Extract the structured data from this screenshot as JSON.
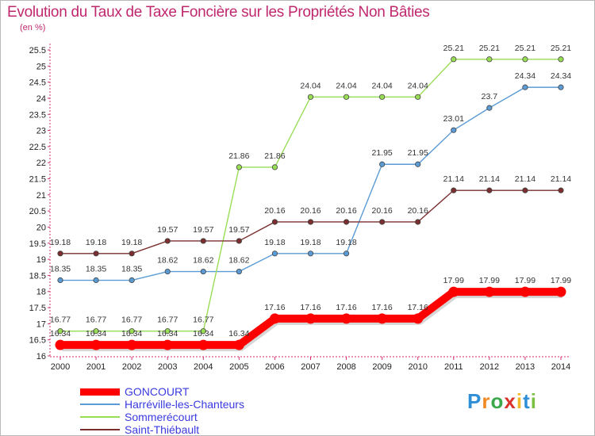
{
  "title": "Evolution du Taux de Taxe Foncière sur les Propriétés Non Bâties",
  "unit_label": "(en %)",
  "brand": {
    "text": "Proxiti",
    "letter_colors": [
      "#2f8fd6",
      "#f08a24",
      "#3aa84b",
      "#d9342b",
      "#f0b92a",
      "#2f8fd6",
      "#7bc043"
    ]
  },
  "chart_data": {
    "type": "line",
    "x": [
      "2000",
      "2001",
      "2002",
      "2003",
      "2004",
      "2005",
      "2006",
      "2007",
      "2008",
      "2009",
      "2010",
      "2011",
      "2012",
      "2013",
      "2014"
    ],
    "ylim": [
      16,
      25.5
    ],
    "yticks": [
      "16",
      "16.5",
      "17",
      "17.5",
      "18",
      "18.5",
      "19",
      "19.5",
      "20",
      "20.5",
      "21",
      "21.5",
      "22",
      "22.5",
      "23",
      "23.5",
      "24",
      "24.5",
      "25",
      "25.5"
    ],
    "grid": false,
    "legend_position": "bottom-left",
    "series": [
      {
        "name": "GONCOURT",
        "color": "#ff0000",
        "emphasis": true,
        "values": [
          16.34,
          16.34,
          16.34,
          16.34,
          16.34,
          16.34,
          17.16,
          17.16,
          17.16,
          17.16,
          17.16,
          17.99,
          17.99,
          17.99,
          17.99
        ],
        "labels": [
          "16.34",
          "16.34",
          "16.34",
          "16.34",
          "16.34",
          "16.34",
          "17.16",
          "17.16",
          "17.16",
          "17.16",
          "17.16",
          "17.99",
          "17.99",
          "17.99",
          "17.99"
        ]
      },
      {
        "name": "Harréville-les-Chanteurs",
        "color": "#5b9bd5",
        "emphasis": false,
        "values": [
          18.35,
          18.35,
          18.35,
          18.62,
          18.62,
          18.62,
          19.18,
          19.18,
          19.18,
          21.95,
          21.95,
          23.01,
          23.7,
          24.34,
          24.34
        ],
        "labels": [
          "18.35",
          "18.35",
          "18.35",
          "18.62",
          "18.62",
          "18.62",
          "19.18",
          "19.18",
          "19.18",
          "21.95",
          "21.95",
          "23.01",
          "23.7",
          "24.34",
          "24.34"
        ]
      },
      {
        "name": "Sommerécourt",
        "color": "#99dd55",
        "emphasis": false,
        "values": [
          16.77,
          16.77,
          16.77,
          16.77,
          16.77,
          21.86,
          21.86,
          24.04,
          24.04,
          24.04,
          24.04,
          25.21,
          25.21,
          25.21,
          25.21
        ],
        "labels": [
          "16.77",
          "16.77",
          "16.77",
          "16.77",
          "16.77",
          "21.86",
          "21.86",
          "24.04",
          "24.04",
          "24.04",
          "24.04",
          "25.21",
          "25.21",
          "25.21",
          "25.21"
        ]
      },
      {
        "name": "Saint-Thiébault",
        "color": "#7a2e2e",
        "emphasis": false,
        "values": [
          19.18,
          19.18,
          19.18,
          19.57,
          19.57,
          19.57,
          20.16,
          20.16,
          20.16,
          20.16,
          20.16,
          21.14,
          21.14,
          21.14,
          21.14
        ],
        "labels": [
          "19.18",
          "19.18",
          "19.18",
          "19.57",
          "19.57",
          "19.57",
          "20.16",
          "20.16",
          "20.16",
          "20.16",
          "20.16",
          "21.14",
          "21.14",
          "21.14",
          "21.14"
        ]
      }
    ]
  }
}
